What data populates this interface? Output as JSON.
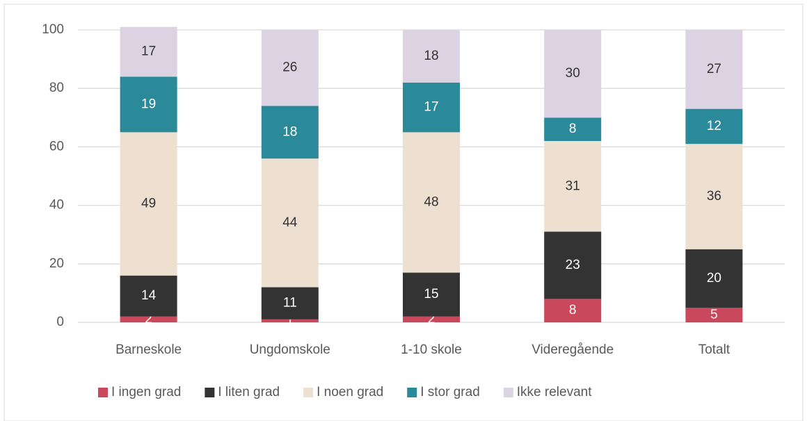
{
  "chart_data": {
    "type": "stacked_bar",
    "categories": [
      "Barneskole",
      "Ungdomskole",
      "1-10 skole",
      "Videregående",
      "Totalt"
    ],
    "series": [
      {
        "name": "I ingen grad",
        "color": "#c9485b",
        "values": [
          2,
          1,
          2,
          8,
          5
        ]
      },
      {
        "name": "I liten grad",
        "color": "#333333",
        "values": [
          14,
          11,
          15,
          23,
          20
        ]
      },
      {
        "name": "I noen grad",
        "color": "#ede0d0",
        "values": [
          49,
          44,
          48,
          31,
          36
        ]
      },
      {
        "name": "I stor grad",
        "color": "#2a8a9a",
        "values": [
          19,
          18,
          17,
          8,
          12
        ]
      },
      {
        "name": "Ikke relevant",
        "color": "#dcd3e2",
        "values": [
          17,
          26,
          18,
          30,
          27
        ]
      }
    ],
    "ylim": [
      0,
      100
    ],
    "yticks": [
      0,
      20,
      40,
      60,
      80,
      100
    ],
    "grid": true,
    "legend": "bottom"
  }
}
